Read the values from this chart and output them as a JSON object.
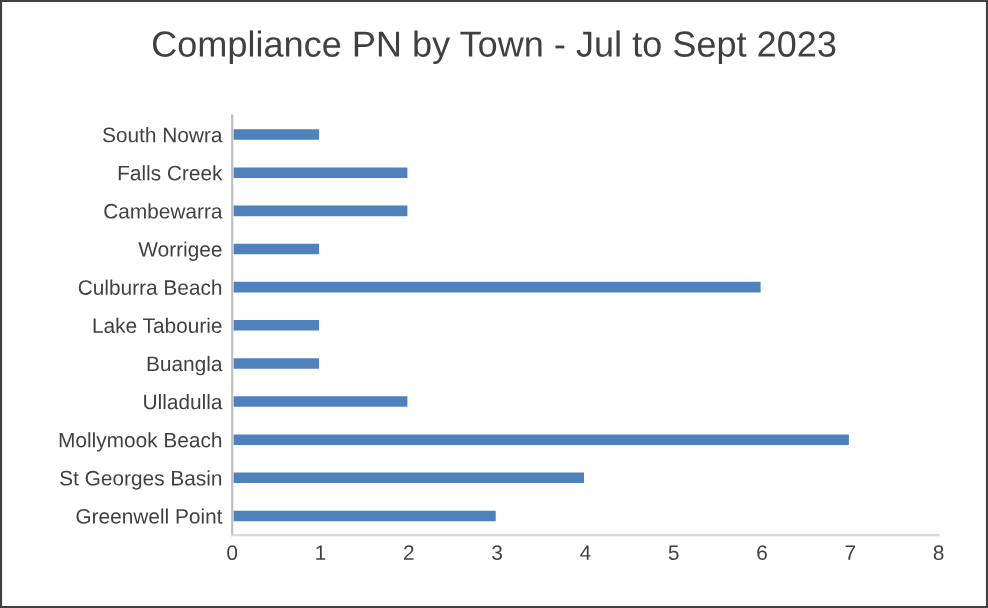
{
  "chart_data": {
    "type": "bar",
    "orientation": "horizontal",
    "title": "Compliance PN by Town - Jul to Sept 2023",
    "categories": [
      "South Nowra",
      "Falls Creek",
      "Cambewarra",
      "Worrigee",
      "Culburra Beach",
      "Lake Tabourie",
      "Buangla",
      "Ulladulla",
      "Mollymook Beach",
      "St Georges Basin",
      "Greenwell Point"
    ],
    "values": [
      1,
      2,
      2,
      1,
      6,
      1,
      1,
      2,
      7,
      4,
      3
    ],
    "color": "#4f81bd",
    "xlim": [
      0,
      8
    ],
    "xticks": [
      0,
      1,
      2,
      3,
      4,
      5,
      6,
      7,
      8
    ],
    "grid": false
  }
}
